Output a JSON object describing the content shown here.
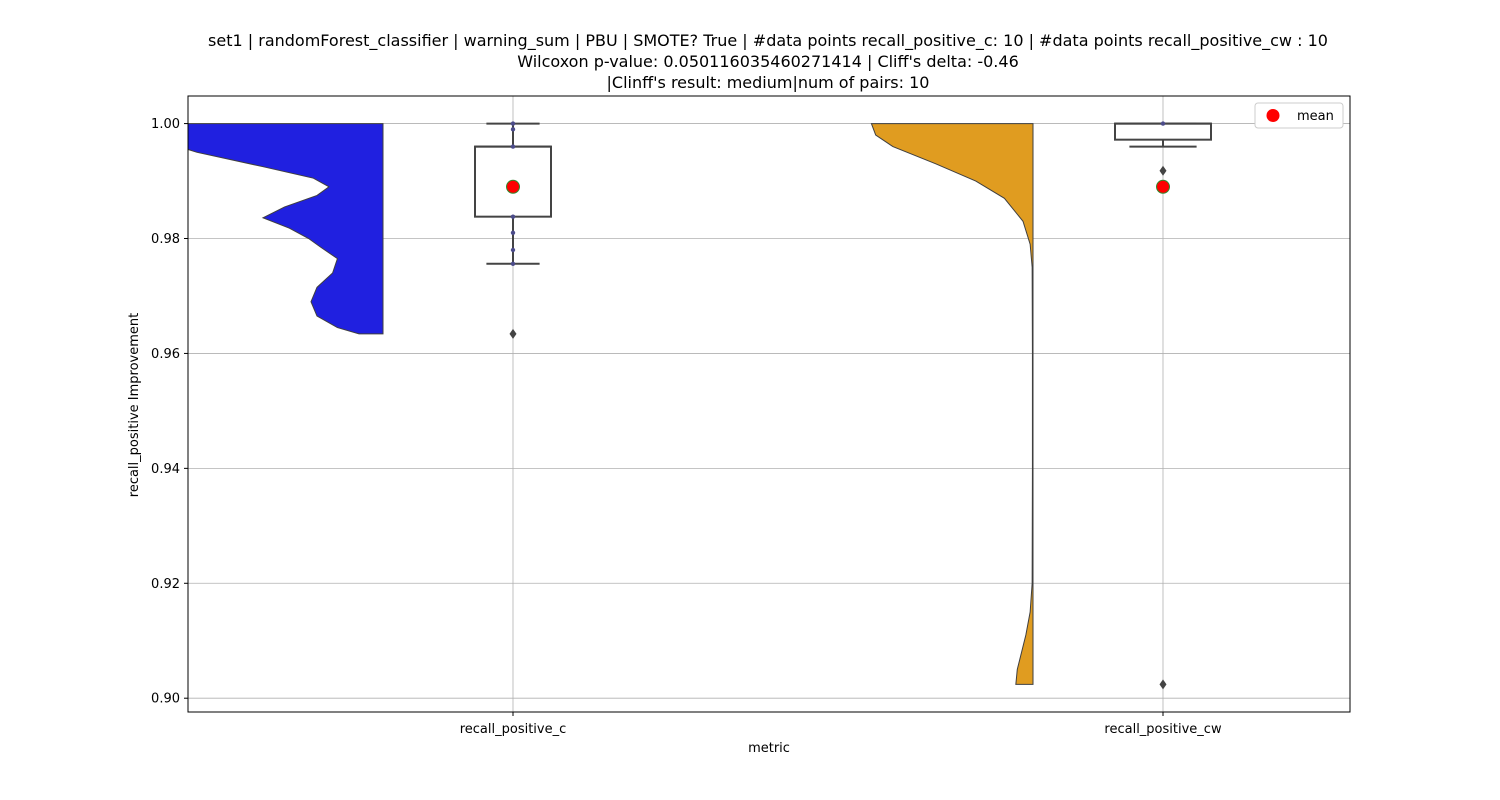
{
  "chart_data": {
    "type": "violin-box",
    "title_lines": [
      "set1 | randomForest_classifier | warning_sum | PBU | SMOTE? True | #data points recall_positive_c: 10 | #data points recall_positive_cw : 10",
      "Wilcoxon p-value: 0.050116035460271414 | Cliff's delta: -0.46",
      "|Clinff's result: medium|num of pairs: 10"
    ],
    "xlabel": "metric",
    "ylabel": "recall_positive Improvement",
    "ylim": [
      0.8976,
      1.0048
    ],
    "yticks": [
      0.9,
      0.92,
      0.94,
      0.96,
      0.98,
      1.0
    ],
    "ytick_labels": [
      "0.90",
      "0.92",
      "0.94",
      "0.96",
      "0.98",
      "1.00"
    ],
    "categories": [
      "recall_positive_c",
      "recall_positive_cw"
    ],
    "grid": true,
    "legend": {
      "placement": "top-right",
      "entries": [
        {
          "label": "mean",
          "color": "#ff0000"
        }
      ]
    },
    "series": [
      {
        "category": "recall_positive_c",
        "violin_color": "#2020e0",
        "violin_range": [
          0.9634,
          1.0
        ],
        "violin_profile": [
          [
            0.9634,
            0.2
          ],
          [
            0.9645,
            0.38
          ],
          [
            0.9665,
            0.55
          ],
          [
            0.969,
            0.6
          ],
          [
            0.9715,
            0.55
          ],
          [
            0.974,
            0.42
          ],
          [
            0.9765,
            0.38
          ],
          [
            0.9785,
            0.52
          ],
          [
            0.98,
            0.62
          ],
          [
            0.9818,
            0.78
          ],
          [
            0.9836,
            1.0
          ],
          [
            0.9855,
            0.82
          ],
          [
            0.9875,
            0.55
          ],
          [
            0.989,
            0.45
          ],
          [
            0.9905,
            0.58
          ],
          [
            0.9925,
            1.0
          ],
          [
            0.995,
            1.55
          ],
          [
            0.997,
            1.85
          ],
          [
            0.9985,
            1.95
          ],
          [
            1.0,
            1.95
          ]
        ],
        "box": {
          "q1": 0.9838,
          "median": 0.996,
          "q3": 0.996,
          "whisker_low": 0.9756,
          "whisker_high": 1.0
        },
        "points": [
          1.0,
          0.999,
          0.996,
          0.9838,
          0.981,
          0.978,
          0.9756
        ],
        "outliers": [
          0.9634
        ],
        "mean": 0.989
      },
      {
        "category": "recall_positive_cw",
        "violin_color": "#e09c20",
        "violin_range": [
          0.9024,
          1.0
        ],
        "violin_profile": [
          [
            0.9024,
            0.12
          ],
          [
            0.905,
            0.11
          ],
          [
            0.908,
            0.08
          ],
          [
            0.911,
            0.05
          ],
          [
            0.915,
            0.02
          ],
          [
            0.92,
            0.006
          ],
          [
            0.94,
            0.004
          ],
          [
            0.96,
            0.004
          ],
          [
            0.975,
            0.006
          ],
          [
            0.979,
            0.02
          ],
          [
            0.983,
            0.07
          ],
          [
            0.987,
            0.2
          ],
          [
            0.99,
            0.4
          ],
          [
            0.993,
            0.68
          ],
          [
            0.996,
            0.98
          ],
          [
            0.998,
            1.1
          ],
          [
            1.0,
            1.13
          ]
        ],
        "box": {
          "q1": 0.9972,
          "median": 1.0,
          "q3": 1.0,
          "whisker_low": 0.996,
          "whisker_high": 1.0
        },
        "points": [
          1.0
        ],
        "outliers": [
          0.9918,
          0.9024
        ],
        "mean": 0.989
      }
    ]
  }
}
